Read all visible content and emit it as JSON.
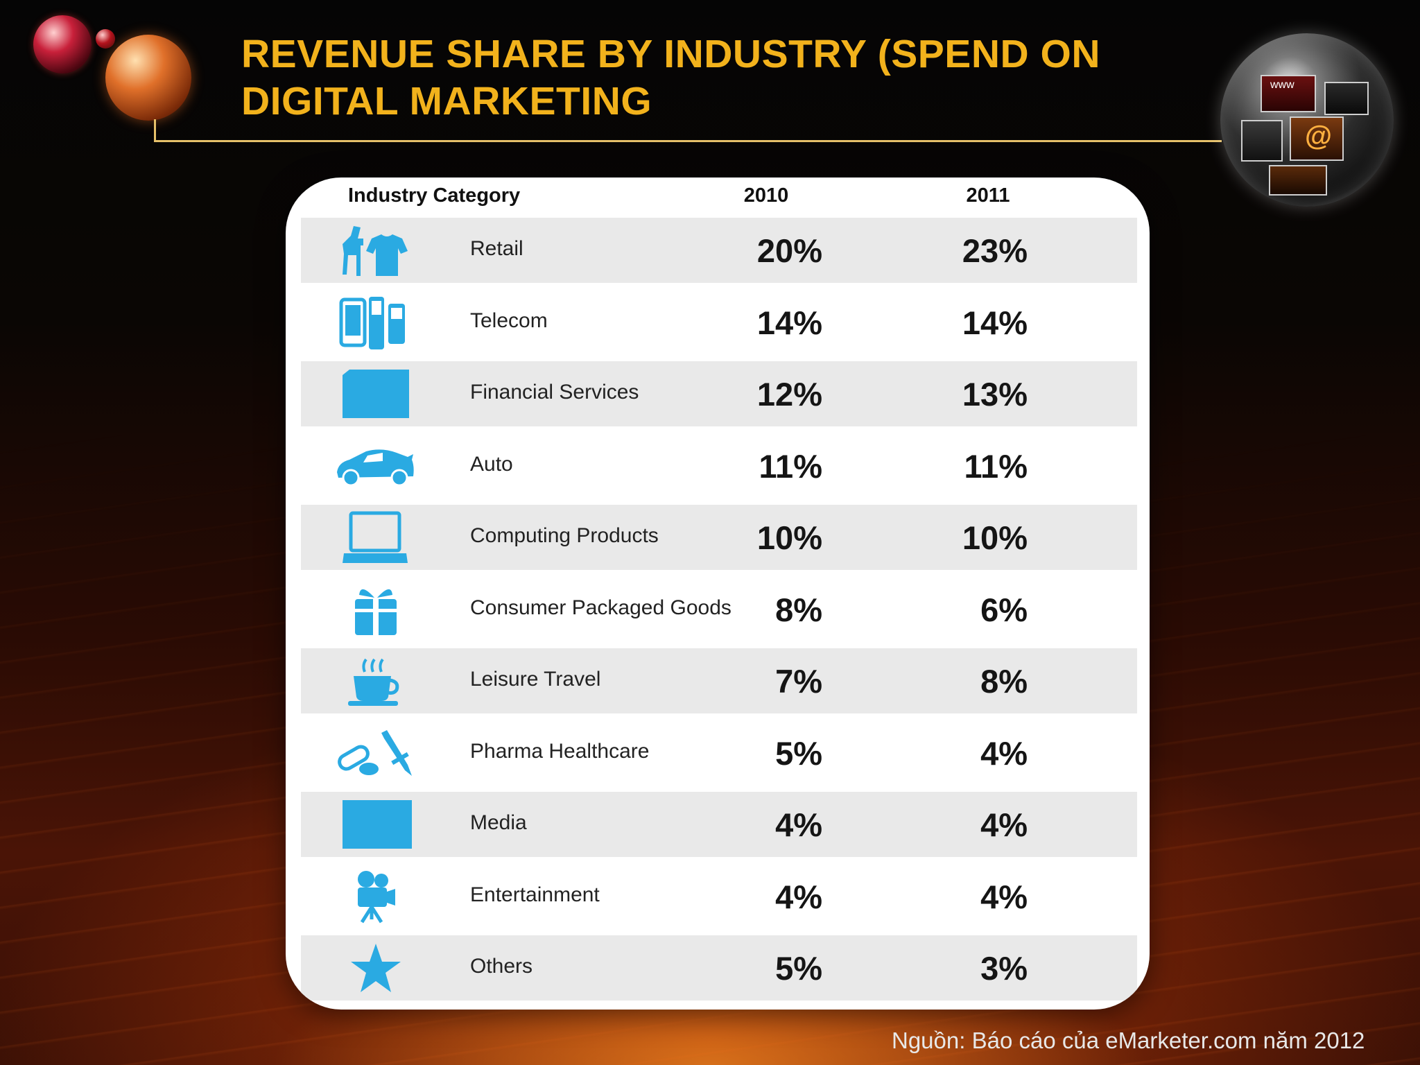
{
  "slide": {
    "title": "REVENUE SHARE BY INDUSTRY (SPEND ON DIGITAL MARKETING",
    "source": "Nguồn: Báo cáo của eMarketer.com năm 2012",
    "accent_color": "#f2b21c",
    "icon_color": "#2aaae2"
  },
  "table": {
    "headers": {
      "category": "Industry Category",
      "y2010": "2010",
      "y2011": "2011"
    },
    "rows": [
      {
        "icon": "retail-icon",
        "label": "Retail",
        "v2010": "20%",
        "v2011": "23%"
      },
      {
        "icon": "telecom-icon",
        "label": "Telecom",
        "v2010": "14%",
        "v2011": "14%"
      },
      {
        "icon": "financial-services-icon",
        "label": "Financial Services",
        "v2010": "12%",
        "v2011": "13%"
      },
      {
        "icon": "auto-icon",
        "label": "Auto",
        "v2010": "11%",
        "v2011": "11%"
      },
      {
        "icon": "laptop-icon",
        "label": "Computing Products",
        "v2010": "10%",
        "v2011": "10%"
      },
      {
        "icon": "gift-icon",
        "label": "Consumer Packaged Goods",
        "v2010": "8%",
        "v2011": "6%"
      },
      {
        "icon": "coffee-cup-icon",
        "label": "Leisure Travel",
        "v2010": "7%",
        "v2011": "8%"
      },
      {
        "icon": "pills-syringe-icon",
        "label": "Pharma Healthcare",
        "v2010": "5%",
        "v2011": "4%"
      },
      {
        "icon": "media-icon",
        "label": "Media",
        "v2010": "4%",
        "v2011": "4%"
      },
      {
        "icon": "movie-camera-icon",
        "label": "Entertainment",
        "v2010": "4%",
        "v2011": "4%"
      },
      {
        "icon": "star-icon",
        "label": "Others",
        "v2010": "5%",
        "v2011": "3%"
      }
    ]
  }
}
